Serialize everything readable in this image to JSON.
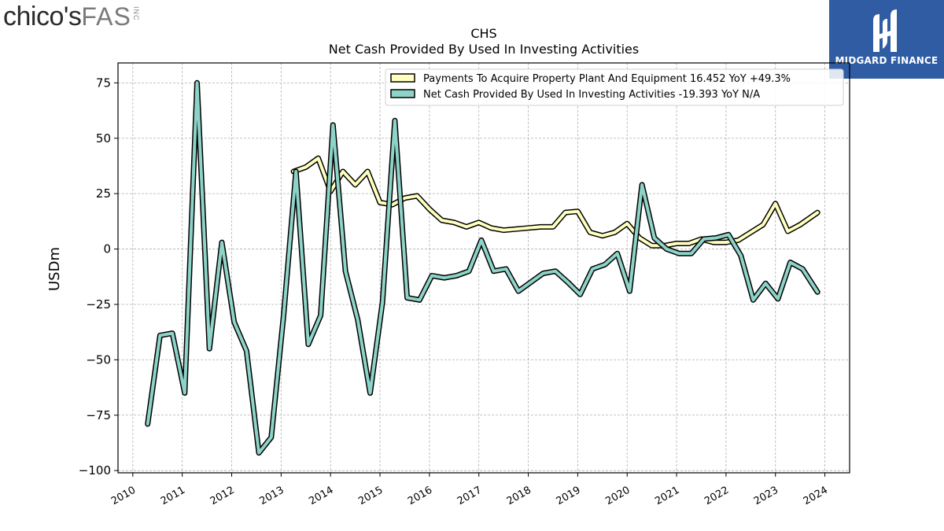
{
  "logos": {
    "left": {
      "brand": "chico's",
      "suffix": "FAS",
      "inc": "INC"
    },
    "right": {
      "name": "MIDGARD FINANCE",
      "bg_color": "#2f5ca3"
    }
  },
  "chart_data": {
    "type": "line",
    "title": "CHS",
    "subtitle": "Net Cash Provided By Used In Investing Activities",
    "ylabel": "USDm",
    "xlabel": "",
    "xlim": [
      2009.7,
      2024.5
    ],
    "ylim": [
      -101,
      84
    ],
    "yticks": [
      75,
      50,
      25,
      0,
      -25,
      -50,
      -75,
      -100
    ],
    "ytick_labels": [
      "75",
      "50",
      "25",
      "0",
      "−25",
      "−50",
      "−75",
      "−100"
    ],
    "xticks": [
      2010,
      2011,
      2012,
      2013,
      2014,
      2015,
      2016,
      2017,
      2018,
      2019,
      2020,
      2021,
      2022,
      2023,
      2024
    ],
    "xtick_labels": [
      "2010",
      "2011",
      "2012",
      "2013",
      "2014",
      "2015",
      "2016",
      "2017",
      "2018",
      "2019",
      "2020",
      "2021",
      "2022",
      "2023",
      "2024"
    ],
    "grid": true,
    "legend_position": "top-right",
    "series": [
      {
        "name": "Payments To Acquire Property Plant And Equipment",
        "legend_label": "Payments To Acquire Property Plant And Equipment  16.452 YoY +49.3%",
        "color": "#ffffbf",
        "edge_color": "#000000",
        "points": [
          [
            2013.25,
            35
          ],
          [
            2013.5,
            37
          ],
          [
            2013.75,
            41
          ],
          [
            2014.0,
            26
          ],
          [
            2014.25,
            35
          ],
          [
            2014.5,
            29
          ],
          [
            2014.75,
            35
          ],
          [
            2015.0,
            21
          ],
          [
            2015.25,
            20
          ],
          [
            2015.5,
            23
          ],
          [
            2015.75,
            24
          ],
          [
            2016.0,
            18
          ],
          [
            2016.25,
            13
          ],
          [
            2016.5,
            12
          ],
          [
            2016.75,
            10
          ],
          [
            2017.0,
            12
          ],
          [
            2017.25,
            9.5
          ],
          [
            2017.5,
            8.5
          ],
          [
            2017.75,
            9
          ],
          [
            2018.0,
            9.5
          ],
          [
            2018.25,
            10
          ],
          [
            2018.5,
            10
          ],
          [
            2018.75,
            16.5
          ],
          [
            2019.0,
            17
          ],
          [
            2019.25,
            7.5
          ],
          [
            2019.5,
            6
          ],
          [
            2019.75,
            7.5
          ],
          [
            2020.0,
            11.5
          ],
          [
            2020.25,
            5
          ],
          [
            2020.5,
            1.5
          ],
          [
            2020.75,
            1.5
          ],
          [
            2021.0,
            2.5
          ],
          [
            2021.25,
            2.5
          ],
          [
            2021.5,
            4.5
          ],
          [
            2021.75,
            3
          ],
          [
            2022.0,
            3
          ],
          [
            2022.25,
            4
          ],
          [
            2022.5,
            7.5
          ],
          [
            2022.75,
            11
          ],
          [
            2023.0,
            20.5
          ],
          [
            2023.25,
            8
          ],
          [
            2023.5,
            11
          ],
          [
            2023.85,
            16.452
          ]
        ]
      },
      {
        "name": "Net Cash Provided By Used In Investing Activities",
        "legend_label": "Net Cash Provided By Used In Investing Activities  -19.393 YoY N/A",
        "color": "#8dd3c7",
        "edge_color": "#000000",
        "points": [
          [
            2010.3,
            -79
          ],
          [
            2010.55,
            -39
          ],
          [
            2010.8,
            -38
          ],
          [
            2011.05,
            -65
          ],
          [
            2011.3,
            75
          ],
          [
            2011.55,
            -45
          ],
          [
            2011.8,
            3
          ],
          [
            2012.05,
            -33
          ],
          [
            2012.3,
            -46
          ],
          [
            2012.55,
            -92
          ],
          [
            2012.8,
            -85
          ],
          [
            2013.05,
            -30
          ],
          [
            2013.3,
            35
          ],
          [
            2013.55,
            -43
          ],
          [
            2013.8,
            -30
          ],
          [
            2014.05,
            56
          ],
          [
            2014.3,
            -10
          ],
          [
            2014.55,
            -32
          ],
          [
            2014.8,
            -65
          ],
          [
            2015.05,
            -24
          ],
          [
            2015.3,
            58
          ],
          [
            2015.55,
            -22
          ],
          [
            2015.8,
            -23
          ],
          [
            2016.05,
            -12
          ],
          [
            2016.3,
            -13
          ],
          [
            2016.55,
            -12
          ],
          [
            2016.8,
            -10
          ],
          [
            2017.05,
            4
          ],
          [
            2017.3,
            -10
          ],
          [
            2017.55,
            -9
          ],
          [
            2017.8,
            -19
          ],
          [
            2018.05,
            -15
          ],
          [
            2018.3,
            -11
          ],
          [
            2018.55,
            -10
          ],
          [
            2018.8,
            -15
          ],
          [
            2019.05,
            -20.5
          ],
          [
            2019.3,
            -9
          ],
          [
            2019.55,
            -7
          ],
          [
            2019.8,
            -2
          ],
          [
            2020.05,
            -19
          ],
          [
            2020.3,
            29
          ],
          [
            2020.55,
            5
          ],
          [
            2020.8,
            0
          ],
          [
            2021.05,
            -2
          ],
          [
            2021.3,
            -2
          ],
          [
            2021.55,
            4.5
          ],
          [
            2021.8,
            5
          ],
          [
            2022.05,
            6.5
          ],
          [
            2022.3,
            -3
          ],
          [
            2022.55,
            -23
          ],
          [
            2022.8,
            -15.5
          ],
          [
            2023.05,
            -22.5
          ],
          [
            2023.3,
            -6
          ],
          [
            2023.55,
            -9
          ],
          [
            2023.85,
            -19.393
          ]
        ]
      }
    ]
  }
}
